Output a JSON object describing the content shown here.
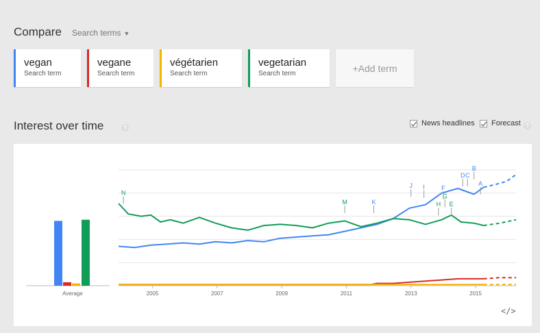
{
  "compare": {
    "title": "Compare",
    "dropdown_label": "Search terms",
    "dropdown_icon": "caret-down-icon"
  },
  "terms": [
    {
      "name": "vegan",
      "sub": "Search term",
      "color": "#4285f4"
    },
    {
      "name": "vegane",
      "sub": "Search term",
      "color": "#db2828"
    },
    {
      "name": "végétarien",
      "sub": "Search term",
      "color": "#f4b400"
    },
    {
      "name": "vegetarian",
      "sub": "Search term",
      "color": "#0f9d58"
    }
  ],
  "add_term_label": "+Add term",
  "section": {
    "title": "Interest over time",
    "help_icon": "question-icon",
    "news_headlines_label": "News headlines",
    "news_headlines_checked": true,
    "forecast_label": "Forecast",
    "forecast_checked": true
  },
  "embed_label": "</>",
  "chart_data": {
    "type": "line",
    "title": "",
    "xlabel": "",
    "ylabel": "",
    "x_ticks": [
      "2005",
      "2007",
      "2009",
      "2011",
      "2013",
      "2015"
    ],
    "x_range": [
      2004,
      2016.3
    ],
    "ylim": [
      0,
      100
    ],
    "average_label": "Average",
    "averages": [
      {
        "name": "vegan",
        "value": 56
      },
      {
        "name": "vegane",
        "value": 3
      },
      {
        "name": "végétarien",
        "value": 2
      },
      {
        "name": "vegetarian",
        "value": 57
      }
    ],
    "series": [
      {
        "name": "vegan",
        "color": "#4285f4",
        "points": [
          [
            2004.0,
            34
          ],
          [
            2004.5,
            33
          ],
          [
            2005.0,
            35
          ],
          [
            2005.5,
            36
          ],
          [
            2006.0,
            37
          ],
          [
            2006.5,
            36
          ],
          [
            2007.0,
            38
          ],
          [
            2007.5,
            37
          ],
          [
            2008.0,
            39
          ],
          [
            2008.5,
            38
          ],
          [
            2009.0,
            41
          ],
          [
            2009.5,
            42
          ],
          [
            2010.0,
            43
          ],
          [
            2010.5,
            44
          ],
          [
            2011.0,
            47
          ],
          [
            2011.5,
            50
          ],
          [
            2012.0,
            53
          ],
          [
            2012.5,
            58
          ],
          [
            2013.0,
            67
          ],
          [
            2013.5,
            70
          ],
          [
            2014.0,
            80
          ],
          [
            2014.5,
            84
          ],
          [
            2015.0,
            79
          ],
          [
            2015.3,
            85
          ]
        ],
        "forecast": [
          [
            2015.3,
            85
          ],
          [
            2015.6,
            87
          ],
          [
            2016.0,
            90
          ],
          [
            2016.3,
            96
          ]
        ]
      },
      {
        "name": "vegane",
        "color": "#db2828",
        "points": [
          [
            2004.0,
            1
          ],
          [
            2006.0,
            1
          ],
          [
            2008.0,
            1
          ],
          [
            2010.0,
            1
          ],
          [
            2011.0,
            1
          ],
          [
            2011.8,
            1
          ],
          [
            2012.0,
            2
          ],
          [
            2012.5,
            2
          ],
          [
            2013.0,
            3
          ],
          [
            2013.5,
            4
          ],
          [
            2014.0,
            5
          ],
          [
            2014.5,
            6
          ],
          [
            2015.0,
            6
          ],
          [
            2015.3,
            6
          ]
        ],
        "forecast": [
          [
            2015.3,
            6
          ],
          [
            2015.8,
            7
          ],
          [
            2016.3,
            7
          ]
        ]
      },
      {
        "name": "végétarien",
        "color": "#f4b400",
        "points": [
          [
            2004.0,
            1
          ],
          [
            2006.0,
            1
          ],
          [
            2008.0,
            1
          ],
          [
            2010.0,
            1
          ],
          [
            2012.0,
            1
          ],
          [
            2013.0,
            1
          ],
          [
            2014.0,
            1
          ],
          [
            2015.0,
            1
          ],
          [
            2015.3,
            1
          ]
        ],
        "forecast": [
          [
            2015.3,
            1
          ],
          [
            2016.3,
            1
          ]
        ]
      },
      {
        "name": "vegetarian",
        "color": "#0f9d58",
        "points": [
          [
            2004.0,
            71
          ],
          [
            2004.3,
            62
          ],
          [
            2004.7,
            60
          ],
          [
            2005.0,
            61
          ],
          [
            2005.3,
            55
          ],
          [
            2005.6,
            57
          ],
          [
            2006.0,
            54
          ],
          [
            2006.5,
            59
          ],
          [
            2007.0,
            54
          ],
          [
            2007.5,
            50
          ],
          [
            2008.0,
            48
          ],
          [
            2008.5,
            52
          ],
          [
            2009.0,
            53
          ],
          [
            2009.5,
            52
          ],
          [
            2010.0,
            50
          ],
          [
            2010.5,
            54
          ],
          [
            2011.0,
            56
          ],
          [
            2011.5,
            51
          ],
          [
            2012.0,
            54
          ],
          [
            2012.5,
            58
          ],
          [
            2013.0,
            57
          ],
          [
            2013.5,
            53
          ],
          [
            2014.0,
            57
          ],
          [
            2014.3,
            61
          ],
          [
            2014.6,
            55
          ],
          [
            2015.0,
            54
          ],
          [
            2015.3,
            52
          ]
        ],
        "forecast": [
          [
            2015.3,
            52
          ],
          [
            2015.8,
            54
          ],
          [
            2016.3,
            57
          ]
        ]
      }
    ],
    "annotations": [
      {
        "label": "N",
        "x": 2004.15,
        "y": 72,
        "color": "#0f9d58"
      },
      {
        "label": "M",
        "x": 2011.0,
        "y": 64,
        "color": "#0f9d58"
      },
      {
        "label": "K",
        "x": 2011.9,
        "y": 64,
        "color": "#4285f4"
      },
      {
        "label": "J",
        "x": 2013.05,
        "y": 78,
        "color": "#4285f4"
      },
      {
        "label": "I",
        "x": 2013.45,
        "y": 77,
        "color": "#4285f4"
      },
      {
        "label": "H",
        "x": 2013.9,
        "y": 62,
        "color": "#0f9d58"
      },
      {
        "label": "G",
        "x": 2014.1,
        "y": 69,
        "color": "#0f9d58"
      },
      {
        "label": "F",
        "x": 2014.05,
        "y": 76,
        "color": "#4285f4"
      },
      {
        "label": "E",
        "x": 2014.3,
        "y": 62,
        "color": "#0f9d58"
      },
      {
        "label": "D",
        "x": 2014.65,
        "y": 87,
        "color": "#4285f4"
      },
      {
        "label": "C",
        "x": 2014.8,
        "y": 87,
        "color": "#4285f4"
      },
      {
        "label": "B",
        "x": 2015.0,
        "y": 93,
        "color": "#4285f4"
      },
      {
        "label": "A",
        "x": 2015.2,
        "y": 80,
        "color": "#4285f4"
      }
    ]
  }
}
